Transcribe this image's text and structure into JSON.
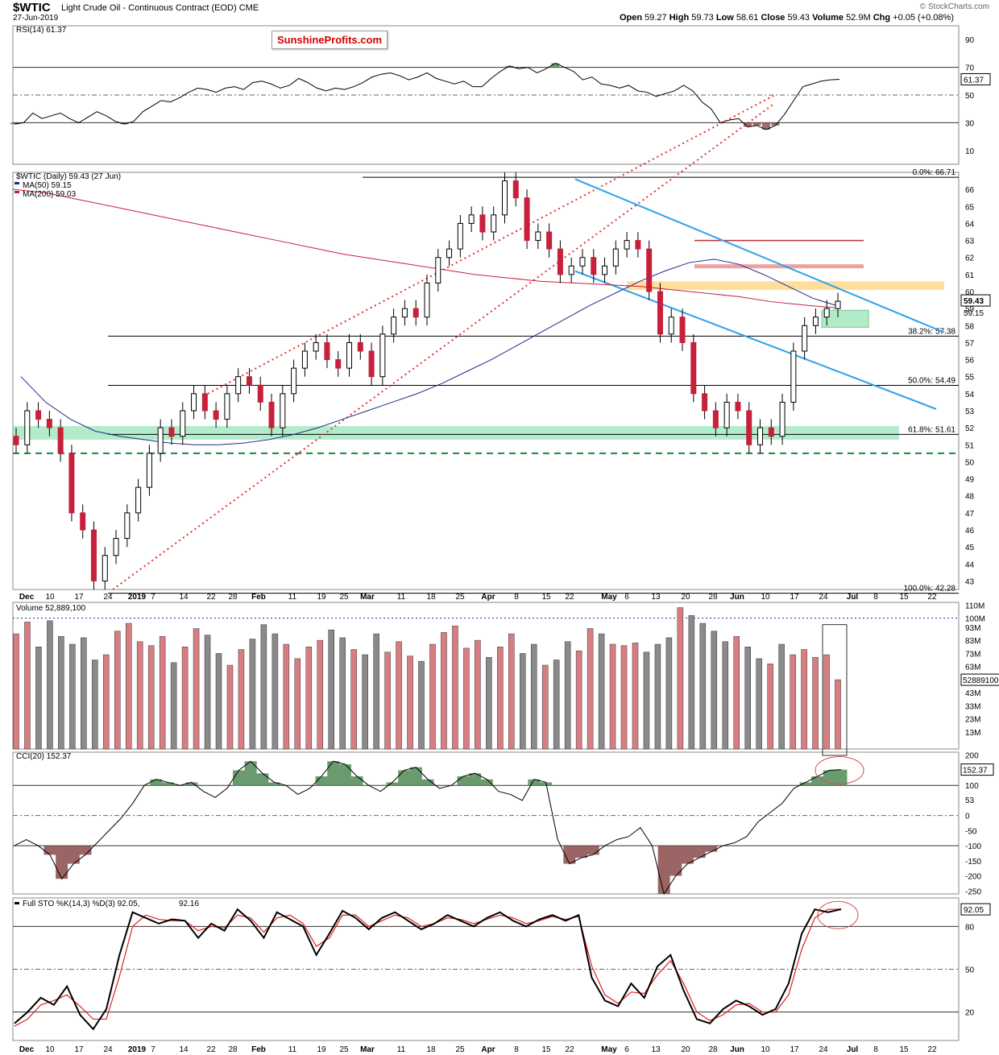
{
  "header": {
    "symbol": "$WTIC",
    "name": "Light Crude Oil - Continuous Contract (EOD)",
    "exchange": "CME",
    "date": "27-Jun-2019",
    "ohlc": [
      {
        "label": "Open",
        "value": "59.27"
      },
      {
        "label": "High",
        "value": "59.73"
      },
      {
        "label": "Low",
        "value": "58.61"
      },
      {
        "label": "Close",
        "value": "59.43"
      },
      {
        "label": "Volume",
        "value": "52.9M"
      },
      {
        "label": "Chg",
        "value": "+0.05 (+0.08%)"
      }
    ],
    "watermark": "© StockCharts.com",
    "brand": "SunshineProfits.com"
  },
  "colors": {
    "up": "#ffffff",
    "down": "#c8203a",
    "ma50": "#1f2a8c",
    "ma200": "#c8203a",
    "channel": "#e03030",
    "trend": "#2aa3e8",
    "support": "#7ee0a6",
    "resistance": "#ffd27a",
    "positive_fill": "#4f8a55",
    "negative_fill": "#8a4a4a",
    "up_volume": "#d87e83",
    "down_volume": "#8a8a8a"
  },
  "chart_data": [
    {
      "type": "line",
      "name": "RSI(14)",
      "legend": "RSI(14) 61.37",
      "last_label": "61.37",
      "ylim": [
        0,
        100
      ],
      "yticks": [
        "10",
        "30",
        "50",
        "70",
        "90"
      ],
      "levels": [
        30,
        50,
        70
      ],
      "values": [
        29,
        30,
        37,
        33,
        35,
        37,
        33,
        30,
        34,
        38,
        35,
        31,
        29,
        31,
        38,
        42,
        46,
        45,
        48,
        52,
        55,
        54,
        52,
        55,
        56,
        54,
        59,
        60,
        58,
        55,
        57,
        62,
        59,
        55,
        53,
        55,
        54,
        56,
        59,
        63,
        65,
        66,
        64,
        61,
        63,
        66,
        62,
        60,
        58,
        60,
        56,
        56,
        62,
        67,
        71,
        69,
        70,
        66,
        69,
        73,
        70,
        67,
        61,
        63,
        58,
        57,
        55,
        57,
        53,
        52,
        49,
        51,
        53,
        57,
        53,
        45,
        40,
        30,
        32,
        33,
        27,
        28,
        25,
        28,
        36,
        46,
        56,
        58,
        60,
        61,
        61.37
      ]
    },
    {
      "type": "candlestick",
      "name": "$WTIC",
      "legend": "$WTIC (Daily) 59.43 (27 Jun)",
      "ylim": [
        42.5,
        67
      ],
      "yticks": [
        "43",
        "44",
        "45",
        "46",
        "47",
        "48",
        "49",
        "50",
        "51",
        "52",
        "53",
        "54",
        "55",
        "56",
        "57",
        "58",
        "59",
        "60",
        "61",
        "62",
        "63",
        "64",
        "65",
        "66"
      ],
      "last_price": "59.43",
      "last_label_ma": "59.15",
      "close": [
        51.0,
        53.0,
        52.5,
        52.0,
        50.5,
        47.0,
        46.0,
        43.0,
        44.5,
        45.5,
        47.0,
        48.5,
        50.5,
        52.0,
        51.5,
        53.0,
        54.0,
        53.0,
        52.5,
        54.0,
        55.0,
        54.5,
        53.5,
        52.0,
        54.0,
        55.5,
        56.5,
        57.0,
        56.0,
        55.5,
        57.0,
        56.5,
        55.0,
        57.5,
        58.5,
        59.0,
        58.5,
        60.5,
        62.0,
        62.5,
        64.0,
        64.5,
        63.5,
        64.5,
        66.5,
        65.5,
        63.0,
        63.5,
        62.5,
        61.0,
        61.5,
        62.0,
        61.0,
        61.5,
        62.5,
        63.0,
        62.5,
        60.0,
        57.5,
        58.5,
        57.0,
        54.0,
        53.0,
        52.0,
        53.5,
        53.0,
        51.0,
        52.0,
        51.5,
        53.5,
        56.5,
        58.0,
        58.5,
        59.0,
        59.43
      ],
      "ma50": {
        "legend": "MA(50) 59.15",
        "values": [
          55.0,
          53.5,
          52.5,
          51.8,
          51.5,
          51.3,
          51.1,
          51.0,
          51.0,
          51.1,
          51.3,
          51.6,
          52.0,
          52.5,
          53.0,
          53.5,
          54.0,
          54.6,
          55.3,
          56.0,
          56.8,
          57.6,
          58.4,
          59.2,
          59.9,
          60.6,
          61.2,
          61.7,
          61.9,
          61.6,
          61.0,
          60.3,
          59.6,
          59.15
        ]
      },
      "ma200": {
        "legend": "MA(200) 59.03",
        "values": [
          66.0,
          65.8,
          65.4,
          65.0,
          64.6,
          64.2,
          63.8,
          63.4,
          63.0,
          62.6,
          62.2,
          61.9,
          61.6,
          61.3,
          61.0,
          60.8,
          60.6,
          60.5,
          60.4,
          60.3,
          60.1,
          59.9,
          59.7,
          59.4,
          59.2,
          59.03
        ]
      },
      "fib_levels": [
        {
          "label": "0.0%: 66.71",
          "value": 66.71
        },
        {
          "label": "38.2%: 57.38",
          "value": 57.38
        },
        {
          "label": "50.0%: 54.49",
          "value": 54.49
        },
        {
          "label": "61.8%: 51.61",
          "value": 51.61
        },
        {
          "label": "100.0%: 42.28",
          "value": 42.28
        }
      ],
      "support_line": 50.5,
      "support_zone": [
        51.3,
        52.1
      ],
      "resistance_zone": [
        60.1,
        60.6
      ],
      "red_levels": [
        63.0,
        61.4
      ]
    },
    {
      "type": "bar",
      "name": "Volume",
      "legend": "Volume 52,889,100",
      "last_label": "52889100",
      "yticks": [
        "13M",
        "23M",
        "33M",
        "43M",
        "53M",
        "63M",
        "73M",
        "83M",
        "93M",
        "100M",
        "110M"
      ],
      "ylim": [
        0,
        112
      ],
      "values": [
        88,
        97,
        78,
        98,
        86,
        80,
        85,
        68,
        72,
        90,
        96,
        82,
        79,
        86,
        66,
        78,
        92,
        87,
        73,
        64,
        76,
        84,
        95,
        88,
        80,
        69,
        78,
        83,
        91,
        85,
        76,
        72,
        88,
        74,
        82,
        71,
        67,
        80,
        89,
        94,
        77,
        83,
        70,
        78,
        88,
        73,
        80,
        64,
        68,
        82,
        75,
        92,
        88,
        80,
        79,
        81,
        74,
        80,
        85,
        108,
        102,
        96,
        90,
        82,
        86,
        78,
        69,
        65,
        80,
        72,
        76,
        70,
        72,
        52.9
      ]
    },
    {
      "type": "area",
      "name": "CCI(20)",
      "legend": "CCI(20) 152.37",
      "last_label": "152.37",
      "ylim": [
        -260,
        210
      ],
      "yticks": [
        "200",
        "150",
        "100",
        "53",
        "0",
        "-50",
        "-100",
        "-150",
        "-200",
        "-250"
      ],
      "levels": [
        -100,
        0,
        100
      ],
      "values": [
        -100,
        -80,
        -100,
        -130,
        -210,
        -160,
        -130,
        -90,
        -50,
        -10,
        40,
        100,
        120,
        110,
        100,
        110,
        80,
        60,
        90,
        150,
        180,
        140,
        110,
        100,
        70,
        90,
        130,
        180,
        170,
        130,
        100,
        80,
        110,
        150,
        160,
        120,
        90,
        100,
        130,
        140,
        120,
        80,
        70,
        50,
        120,
        110,
        -80,
        -160,
        -140,
        -130,
        -100,
        -80,
        -70,
        -40,
        -100,
        -260,
        -200,
        -160,
        -140,
        -120,
        -100,
        -90,
        -70,
        -20,
        10,
        40,
        90,
        110,
        130,
        150,
        152.37
      ]
    },
    {
      "type": "line",
      "name": "Full STO %K(14,3) %D(3)",
      "legend_k": "Full STO %K(14,3) %D(3) 92.05,",
      "legend_d": "92.16",
      "last_label": "92.05",
      "ylim": [
        0,
        100
      ],
      "yticks": [
        "20",
        "50",
        "80"
      ],
      "levels": [
        20,
        50,
        80
      ],
      "k": [
        12,
        20,
        30,
        25,
        38,
        18,
        8,
        22,
        60,
        90,
        86,
        82,
        85,
        84,
        72,
        82,
        77,
        92,
        84,
        72,
        90,
        85,
        80,
        60,
        75,
        91,
        86,
        78,
        86,
        90,
        84,
        78,
        82,
        88,
        84,
        80,
        86,
        90,
        84,
        80,
        85,
        88,
        84,
        88,
        44,
        28,
        24,
        40,
        30,
        52,
        60,
        35,
        15,
        12,
        22,
        28,
        24,
        18,
        22,
        40,
        75,
        92,
        90,
        92.05
      ],
      "d": [
        10,
        15,
        25,
        28,
        32,
        24,
        15,
        15,
        45,
        80,
        88,
        85,
        84,
        84,
        77,
        80,
        79,
        88,
        86,
        76,
        86,
        88,
        82,
        66,
        72,
        88,
        88,
        80,
        84,
        88,
        86,
        80,
        82,
        86,
        85,
        82,
        85,
        88,
        86,
        82,
        84,
        87,
        85,
        87,
        52,
        32,
        26,
        34,
        33,
        46,
        56,
        40,
        20,
        14,
        18,
        25,
        26,
        20,
        20,
        32,
        64,
        86,
        92,
        92.16
      ]
    }
  ],
  "x_axis": {
    "labels": [
      "Dec",
      "10",
      "17",
      "24",
      "2019",
      "7",
      "14",
      "22",
      "28",
      "Feb",
      "11",
      "19",
      "25",
      "Mar",
      "11",
      "18",
      "25",
      "Apr",
      "8",
      "15",
      "22",
      "May",
      "6",
      "13",
      "20",
      "28",
      "Jun",
      "10",
      "17",
      "24",
      "Jul",
      "8",
      "15",
      "22"
    ],
    "bold": [
      "Dec",
      "2019",
      "Feb",
      "Mar",
      "Apr",
      "May",
      "Jun",
      "Jul"
    ]
  }
}
